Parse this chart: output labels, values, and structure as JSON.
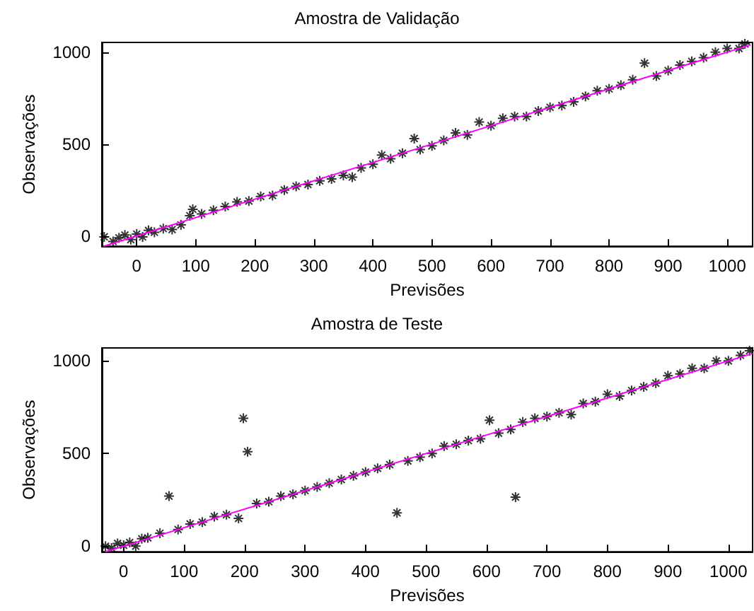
{
  "chart_data": [
    {
      "type": "scatter",
      "title": "Amostra de Validação",
      "xlabel": "Previsões",
      "ylabel": "Observações",
      "xlim": [
        -59,
        1043
      ],
      "ylim": [
        -56,
        1053
      ],
      "xticks": [
        0,
        100,
        200,
        300,
        400,
        500,
        600,
        700,
        800,
        900,
        1000
      ],
      "yticks": [
        0,
        500,
        1000
      ],
      "grid": false,
      "marker": "cross",
      "series": [
        {
          "color": "#000000",
          "x": [
            -55,
            -40,
            -30,
            -20,
            -10,
            0,
            10,
            20,
            30,
            45,
            60,
            75,
            90,
            95,
            110,
            130,
            150,
            170,
            190,
            210,
            230,
            250,
            270,
            290,
            310,
            330,
            350,
            365,
            380,
            400,
            415,
            430,
            450,
            470,
            480,
            500,
            520,
            540,
            560,
            580,
            600,
            620,
            640,
            660,
            680,
            700,
            720,
            740,
            760,
            780,
            800,
            820,
            840,
            860,
            880,
            900,
            920,
            940,
            960,
            980,
            1000,
            1020,
            1030
          ],
          "values": [
            -5,
            -30,
            -10,
            5,
            -20,
            10,
            -5,
            30,
            20,
            40,
            35,
            60,
            110,
            145,
            120,
            140,
            160,
            185,
            190,
            215,
            220,
            250,
            270,
            280,
            300,
            310,
            330,
            320,
            370,
            390,
            440,
            420,
            450,
            530,
            470,
            490,
            520,
            560,
            550,
            620,
            600,
            640,
            650,
            650,
            680,
            700,
            710,
            730,
            760,
            790,
            800,
            820,
            850,
            940,
            870,
            900,
            930,
            950,
            970,
            1000,
            1020,
            1020,
            1045
          ]
        },
        {
          "type": "line",
          "color": "#ff00ff",
          "marker": "none",
          "line_style": "solid",
          "x": [
            -56,
            1040
          ],
          "values": [
            -56,
            1040
          ]
        }
      ]
    },
    {
      "type": "scatter",
      "title": "Amostra de Teste",
      "xlabel": "Previsões",
      "ylabel": "Observações",
      "xlim": [
        -36,
        1040
      ],
      "ylim": [
        -30,
        1070
      ],
      "xticks": [
        0,
        100,
        200,
        300,
        400,
        500,
        600,
        700,
        800,
        900,
        1000
      ],
      "yticks": [
        0,
        500,
        1000
      ],
      "grid": false,
      "marker": "cross",
      "series": [
        {
          "color": "#000000",
          "x": [
            -30,
            -20,
            -10,
            0,
            10,
            20,
            30,
            40,
            60,
            75,
            90,
            110,
            130,
            150,
            170,
            190,
            198,
            205,
            220,
            240,
            260,
            280,
            300,
            320,
            340,
            360,
            380,
            400,
            420,
            440,
            452,
            470,
            490,
            510,
            530,
            550,
            570,
            590,
            605,
            620,
            640,
            648,
            660,
            680,
            700,
            720,
            740,
            760,
            780,
            800,
            820,
            840,
            860,
            880,
            900,
            920,
            940,
            960,
            980,
            1000,
            1020,
            1035
          ],
          "values": [
            0,
            -10,
            15,
            5,
            20,
            0,
            40,
            45,
            70,
            270,
            90,
            120,
            130,
            160,
            170,
            150,
            690,
            510,
            230,
            240,
            270,
            280,
            300,
            320,
            340,
            360,
            380,
            400,
            420,
            440,
            180,
            460,
            480,
            500,
            540,
            550,
            570,
            580,
            680,
            610,
            630,
            265,
            670,
            690,
            700,
            720,
            710,
            770,
            780,
            820,
            810,
            840,
            860,
            880,
            920,
            930,
            960,
            960,
            1000,
            1000,
            1030,
            1055
          ]
        },
        {
          "type": "line",
          "color": "#ff00ff",
          "marker": "none",
          "line_style": "solid",
          "x": [
            -30,
            1040
          ],
          "values": [
            -30,
            1040
          ]
        }
      ]
    }
  ]
}
